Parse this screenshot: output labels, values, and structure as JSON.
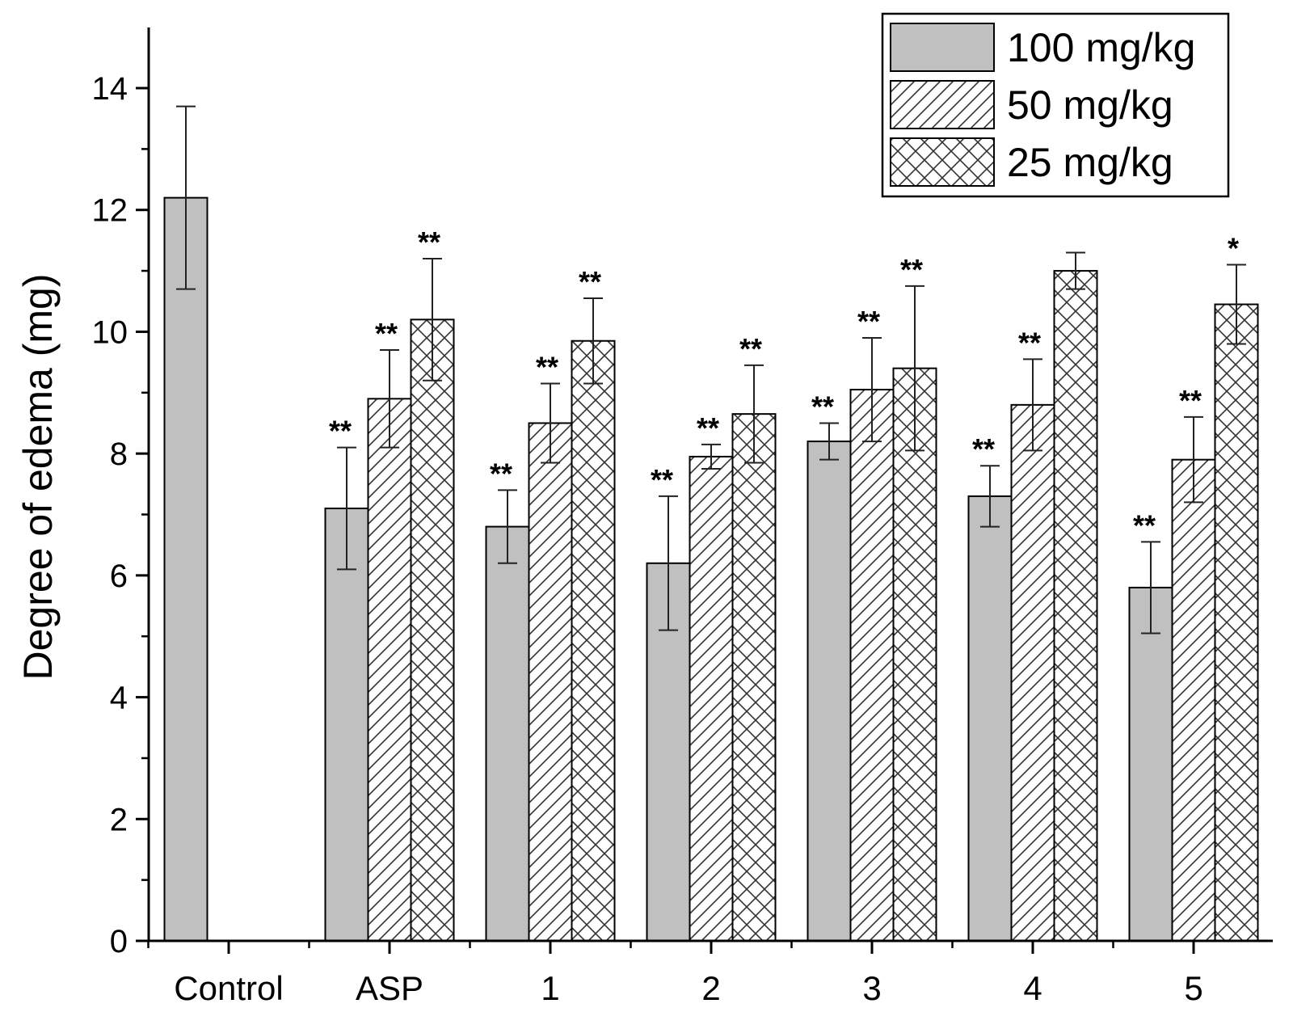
{
  "chart_data": {
    "type": "bar",
    "title": "",
    "xlabel": "",
    "ylabel": "Degree of edema (mg)",
    "ylim": [
      0,
      15
    ],
    "yticks": [
      "0",
      "2",
      "4",
      "6",
      "8",
      "10",
      "12",
      "14"
    ],
    "categories": [
      "Control",
      "ASP",
      "1",
      "2",
      "3",
      "4",
      "5"
    ],
    "legend_position": "top-right",
    "series": [
      {
        "name": "100 mg/kg",
        "pattern": "solid",
        "color": "#c0c0c0",
        "values": [
          12.2,
          7.1,
          6.8,
          6.2,
          8.2,
          7.3,
          5.8
        ],
        "errors": [
          1.5,
          1.0,
          0.6,
          1.1,
          0.3,
          0.5,
          0.75
        ],
        "significance": [
          "",
          "**",
          "**",
          "**",
          "**",
          "**",
          "**"
        ]
      },
      {
        "name": "50 mg/kg",
        "pattern": "diagonal-hatch",
        "color": "#ffffff",
        "values": [
          null,
          8.9,
          8.5,
          7.95,
          9.05,
          8.8,
          7.9
        ],
        "errors": [
          null,
          0.8,
          0.65,
          0.2,
          0.85,
          0.75,
          0.7
        ],
        "significance": [
          "",
          "**",
          "**",
          "**",
          "**",
          "**",
          "**"
        ]
      },
      {
        "name": "25 mg/kg",
        "pattern": "cross-hatch",
        "color": "#ffffff",
        "values": [
          null,
          10.2,
          9.85,
          8.65,
          9.4,
          11.0,
          10.45
        ],
        "errors": [
          null,
          1.0,
          0.7,
          0.8,
          1.35,
          0.3,
          0.65
        ],
        "significance": [
          "",
          "**",
          "**",
          "**",
          "**",
          "",
          "*"
        ]
      }
    ]
  }
}
